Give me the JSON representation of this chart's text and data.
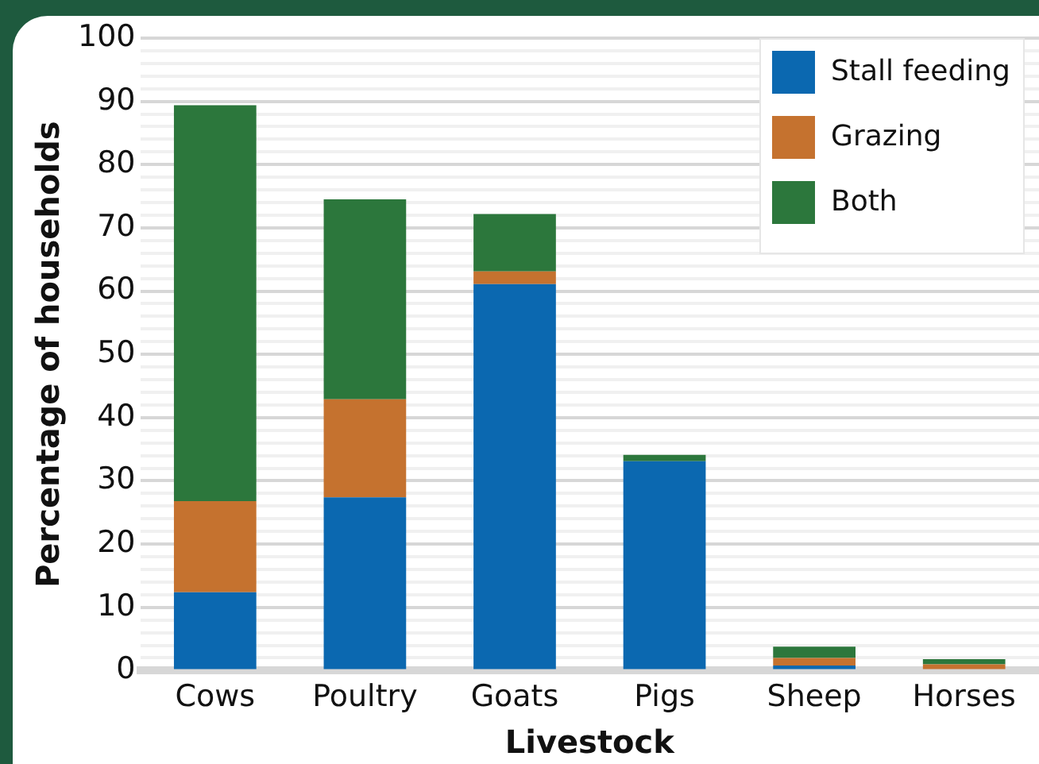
{
  "chart_data": {
    "type": "bar",
    "stacked": true,
    "xlabel": "Livestock",
    "ylabel": "Percentage of households",
    "categories": [
      "Cows",
      "Poultry",
      "Goats",
      "Pigs",
      "Sheep",
      "Horses"
    ],
    "series": [
      {
        "name": "Stall feeding",
        "color": "#0b68b0",
        "values": [
          12.4,
          27.4,
          61.1,
          33.1,
          0.8,
          0
        ]
      },
      {
        "name": "Grazing",
        "color": "#c5722f",
        "values": [
          14.4,
          15.5,
          2.0,
          0,
          1.2,
          1.0
        ]
      },
      {
        "name": "Both",
        "color": "#2c773c",
        "values": [
          62.6,
          31.6,
          9.1,
          1.0,
          1.8,
          0.8
        ]
      }
    ],
    "ylim": [
      0,
      100
    ],
    "yticks": [
      0,
      {
        "value": 2,
        "label": null
      },
      {
        "value": 4,
        "label": null
      },
      {
        "value": 6,
        "label": null
      },
      {
        "value": 8,
        "label": null
      },
      10,
      {
        "value": 12,
        "label": null
      },
      {
        "value": 14,
        "label": null
      },
      {
        "value": 16,
        "label": null
      },
      {
        "value": 18,
        "label": null
      },
      20,
      {
        "value": 22,
        "label": null
      },
      {
        "value": 24,
        "label": null
      },
      {
        "value": 26,
        "label": null
      },
      {
        "value": 28,
        "label": null
      },
      30,
      {
        "value": 32,
        "label": null
      },
      {
        "value": 34,
        "label": null
      },
      {
        "value": 36,
        "label": null
      },
      {
        "value": 38,
        "label": null
      },
      40,
      {
        "value": 42,
        "label": null
      },
      {
        "value": 44,
        "label": null
      },
      {
        "value": 46,
        "label": null
      },
      {
        "value": 48,
        "label": null
      },
      50,
      {
        "value": 52,
        "label": null
      },
      {
        "value": 54,
        "label": null
      },
      {
        "value": 56,
        "label": null
      },
      {
        "value": 58,
        "label": null
      },
      60,
      {
        "value": 62,
        "label": null
      },
      {
        "value": 64,
        "label": null
      },
      {
        "value": 66,
        "label": null
      },
      {
        "value": 68,
        "label": null
      },
      70,
      {
        "value": 72,
        "label": null
      },
      {
        "value": 74,
        "label": null
      },
      {
        "value": 76,
        "label": null
      },
      {
        "value": 78,
        "label": null
      },
      80,
      {
        "value": 82,
        "label": null
      },
      {
        "value": 84,
        "label": null
      },
      {
        "value": 86,
        "label": null
      },
      {
        "value": 88,
        "label": null
      },
      90,
      {
        "value": 92,
        "label": null
      },
      {
        "value": 94,
        "label": null
      },
      {
        "value": 96,
        "label": null
      },
      {
        "value": 98,
        "label": null
      },
      100
    ],
    "grid": "y",
    "legend": "top right"
  }
}
